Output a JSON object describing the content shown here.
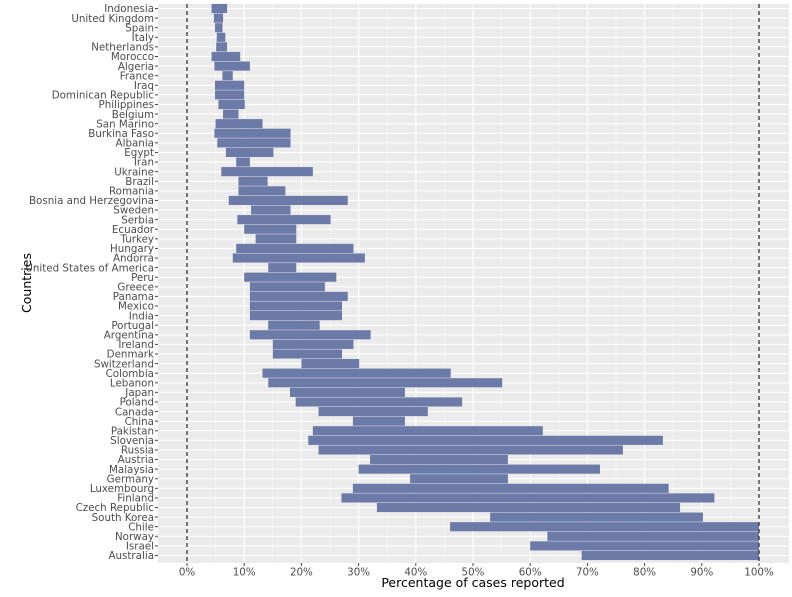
{
  "chart_data": {
    "type": "bar",
    "orientation": "horizontal",
    "bar_style": "floating-range",
    "xlabel": "Percentage of cases reported",
    "ylabel": "Countries",
    "xlim": [
      -5,
      102
    ],
    "x_ticks": [
      0,
      10,
      20,
      30,
      40,
      50,
      60,
      70,
      80,
      90,
      100
    ],
    "x_tick_labels": [
      "0%",
      "10%",
      "20%",
      "30%",
      "40%",
      "50%",
      "60%",
      "70%",
      "80%",
      "90%",
      "100%"
    ],
    "reference_lines": [
      0,
      100
    ],
    "grid": true,
    "legend": "none",
    "bar_color": "#6b7aa7",
    "panel_background": "#ebebeb",
    "categories": [
      "Indonesia",
      "United Kingdom",
      "Spain",
      "Italy",
      "Netherlands",
      "Morocco",
      "Algeria",
      "France",
      "Iraq",
      "Dominican Republic",
      "Philippines",
      "Belgium",
      "San Marino",
      "Burkina Faso",
      "Albania",
      "Egypt",
      "Iran",
      "Ukraine",
      "Brazil",
      "Romania",
      "Bosnia and Herzegovina",
      "Sweden",
      "Serbia",
      "Ecuador",
      "Turkey",
      "Hungary",
      "Andorra",
      "United States of America",
      "Peru",
      "Greece",
      "Panama",
      "Mexico",
      "India",
      "Portugal",
      "Argentina",
      "Ireland",
      "Denmark",
      "Switzerland",
      "Colombia",
      "Lebanon",
      "Japan",
      "Poland",
      "Canada",
      "China",
      "Pakistan",
      "Slovenia",
      "Russia",
      "Austria",
      "Malaysia",
      "Germany",
      "Luxembourg",
      "Finland",
      "Czech Republic",
      "South Korea",
      "Chile",
      "Norway",
      "Israel",
      "Australia"
    ],
    "low": [
      4.3,
      4.7,
      4.9,
      5.2,
      5.1,
      4.3,
      4.8,
      6.2,
      4.9,
      4.9,
      5.5,
      6.3,
      5.0,
      4.8,
      5.3,
      6.8,
      8.6,
      6.0,
      9.0,
      9.0,
      7.3,
      11.2,
      8.8,
      10.0,
      12.0,
      8.6,
      8.0,
      14.2,
      10.0,
      11.0,
      11.0,
      11.0,
      11.0,
      14.2,
      11.0,
      15.0,
      15.0,
      20.0,
      13.2,
      14.2,
      18.0,
      19.0,
      23.0,
      29.0,
      22.0,
      21.2,
      23.0,
      32.0,
      30.0,
      39.0,
      29.0,
      27.0,
      33.2,
      53.0,
      46.0,
      63.0,
      60.0,
      69.0
    ],
    "high": [
      7.0,
      6.3,
      6.2,
      6.7,
      7.0,
      9.3,
      11.0,
      8.0,
      10.0,
      10.0,
      10.1,
      9.0,
      13.2,
      18.1,
      18.1,
      15.1,
      11.0,
      22.0,
      14.1,
      17.2,
      28.1,
      18.1,
      25.1,
      19.1,
      19.1,
      29.1,
      31.1,
      19.1,
      26.1,
      24.1,
      28.1,
      27.1,
      27.1,
      23.2,
      32.1,
      29.1,
      27.1,
      30.1,
      46.1,
      55.1,
      38.1,
      48.1,
      42.1,
      38.1,
      62.2,
      83.2,
      76.2,
      56.1,
      72.2,
      56.1,
      84.2,
      92.2,
      86.2,
      90.2,
      100.0,
      100.0,
      100.0,
      100.0
    ]
  }
}
